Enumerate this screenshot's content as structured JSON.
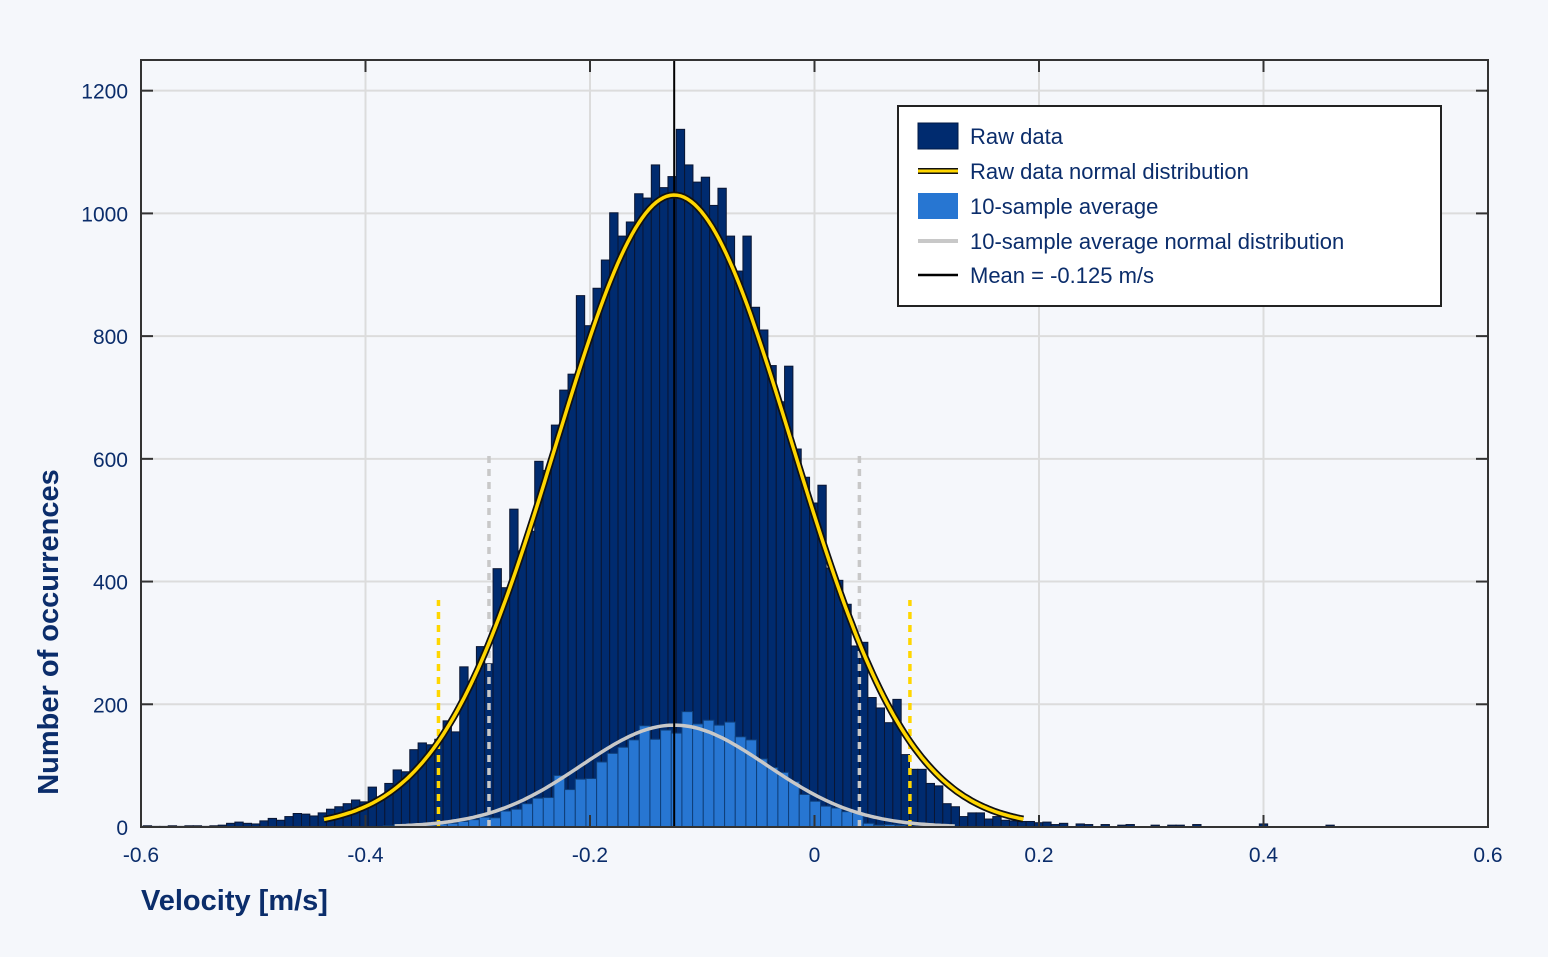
{
  "chart_data": {
    "type": "bar",
    "xlabel": "Velocity [m/s]",
    "ylabel": "Number of occurrences",
    "xlim": [
      -0.6,
      0.6
    ],
    "ylim": [
      0,
      1250
    ],
    "xticks": [
      "-0.6",
      "-0.4",
      "-0.2",
      "0",
      "0.2",
      "0.4",
      "0.6"
    ],
    "xtick_values": [
      -0.6,
      -0.4,
      -0.2,
      0,
      0.2,
      0.4,
      0.6
    ],
    "yticks": [
      "0",
      "200",
      "400",
      "600",
      "800",
      "1000",
      "1200"
    ],
    "ytick_values": [
      0,
      200,
      400,
      600,
      800,
      1000,
      1200
    ],
    "grid": true,
    "legend_position": "top-right",
    "series": [
      {
        "name": "Raw data",
        "kind": "histogram",
        "color": "#002b6f",
        "bin_start": -0.598,
        "bin_width": 0.00742,
        "counts": [
          2,
          1,
          1,
          2,
          1,
          2,
          2,
          1,
          2,
          3,
          6,
          8,
          6,
          5,
          10,
          14,
          11,
          17,
          22,
          21,
          18,
          23,
          29,
          33,
          38,
          44,
          41,
          65,
          49,
          71,
          93,
          90,
          126,
          137,
          134,
          143,
          173,
          155,
          261,
          235,
          294,
          266,
          421,
          390,
          518,
          450,
          482,
          596,
          581,
          655,
          712,
          738,
          866,
          817,
          878,
          924,
          1001,
          963,
          986,
          1032,
          1025,
          1079,
          1042,
          1060,
          1137,
          1079,
          1051,
          1059,
          1013,
          1041,
          963,
          906,
          963,
          847,
          810,
          752,
          693,
          751,
          616,
          570,
          528,
          557,
          422,
          402,
          363,
          295,
          301,
          211,
          194,
          170,
          208,
          118,
          94,
          94,
          71,
          67,
          38,
          33,
          17,
          23,
          23,
          13,
          17,
          11,
          10,
          9,
          9,
          7,
          8,
          4,
          6,
          0,
          5,
          4,
          0,
          4,
          0,
          3,
          4,
          0,
          0,
          3,
          0,
          3,
          3,
          0,
          4,
          0,
          0,
          0,
          0,
          0,
          0,
          0,
          5,
          0,
          0,
          0,
          0,
          0,
          0,
          0,
          3
        ]
      },
      {
        "name": "Raw data normal distribution",
        "kind": "normal-curve",
        "color": "#ffd600",
        "mean": -0.125,
        "sigma": 0.105,
        "peak": 1030,
        "range": [
          -0.437,
          0.186
        ]
      },
      {
        "name": "10-sample average",
        "kind": "histogram",
        "color": "#2776d2",
        "bin_start": -0.3841,
        "bin_width": 0.0095,
        "counts": [
          2,
          4,
          2,
          2,
          3,
          5,
          6,
          9,
          12,
          16,
          15,
          26,
          29,
          38,
          47,
          48,
          84,
          61,
          78,
          79,
          106,
          120,
          130,
          142,
          165,
          143,
          158,
          153,
          188,
          168,
          174,
          166,
          171,
          147,
          142,
          111,
          97,
          89,
          74,
          53,
          42,
          34,
          31,
          25,
          23,
          6,
          3,
          4,
          3
        ]
      },
      {
        "name": "10-sample average normal distribution",
        "kind": "normal-curve",
        "color": "#c8c8c8",
        "mean": -0.125,
        "sigma": 0.0825,
        "peak": 166,
        "range": [
          -0.374,
          0.125
        ]
      },
      {
        "name": "Mean = -0.125 m/s",
        "kind": "vertical-line",
        "color": "#000000",
        "x": -0.125
      }
    ],
    "annotations": [
      {
        "kind": "dashed-line",
        "color": "#ffd600",
        "x": -0.335,
        "y_top": 370
      },
      {
        "kind": "dashed-line",
        "color": "#ffd600",
        "x": 0.085,
        "y_top": 370
      },
      {
        "kind": "dashed-line",
        "color": "#c8c8c8",
        "x": -0.29,
        "y_top": 610
      },
      {
        "kind": "dashed-line",
        "color": "#c8c8c8",
        "x": 0.04,
        "y_top": 610
      }
    ]
  }
}
